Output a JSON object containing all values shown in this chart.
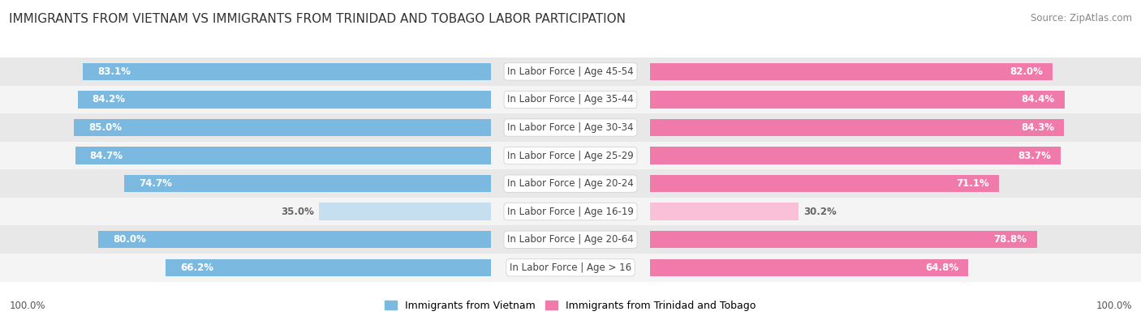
{
  "title": "IMMIGRANTS FROM VIETNAM VS IMMIGRANTS FROM TRINIDAD AND TOBAGO LABOR PARTICIPATION",
  "source": "Source: ZipAtlas.com",
  "categories": [
    "In Labor Force | Age > 16",
    "In Labor Force | Age 20-64",
    "In Labor Force | Age 16-19",
    "In Labor Force | Age 20-24",
    "In Labor Force | Age 25-29",
    "In Labor Force | Age 30-34",
    "In Labor Force | Age 35-44",
    "In Labor Force | Age 45-54"
  ],
  "vietnam_values": [
    66.2,
    80.0,
    35.0,
    74.7,
    84.7,
    85.0,
    84.2,
    83.1
  ],
  "trinidad_values": [
    64.8,
    78.8,
    30.2,
    71.1,
    83.7,
    84.3,
    84.4,
    82.0
  ],
  "vietnam_color": "#7cb9e0",
  "vietnam_color_light": "#c5dff0",
  "trinidad_color": "#f07aaa",
  "trinidad_color_light": "#f9c0d8",
  "row_colors": [
    "#f4f4f4",
    "#e8e8e8"
  ],
  "label_color_white": "#ffffff",
  "label_color_dark": "#666666",
  "max_value": 100.0,
  "bar_height": 0.62,
  "title_fontsize": 11,
  "source_fontsize": 8.5,
  "value_fontsize": 8.5,
  "category_fontsize": 8.5,
  "legend_fontsize": 9,
  "footer_text": "100.0%"
}
